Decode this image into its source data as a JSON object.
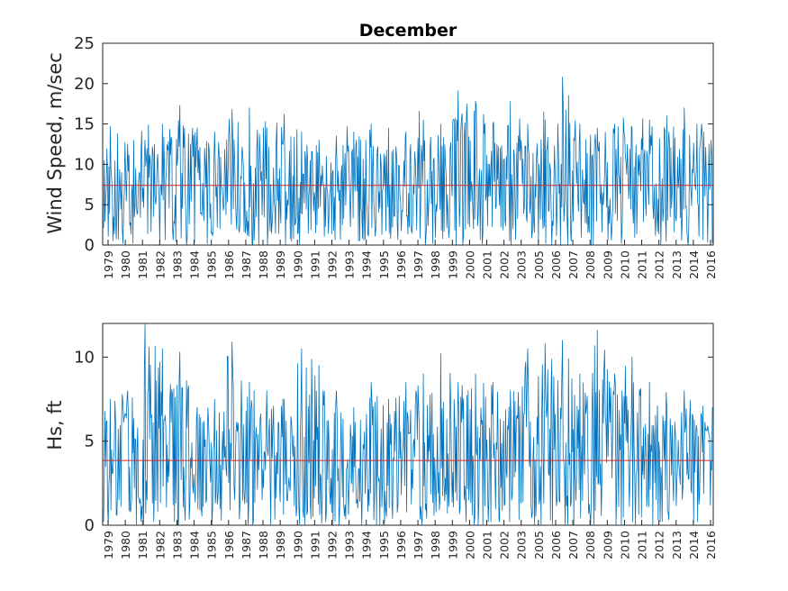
{
  "chart_data": [
    {
      "type": "line",
      "title": "December",
      "ylabel": "Wind Speed, m/sec",
      "xlabel": "",
      "ylim": [
        0,
        25
      ],
      "yticks": [
        "0",
        "5",
        "10",
        "15",
        "20",
        "25"
      ],
      "xtick_labels": [
        "1979",
        "1980",
        "1981",
        "1982",
        "1983",
        "1984",
        "1985",
        "1986",
        "1987",
        "1988",
        "1989",
        "1990",
        "1991",
        "1992",
        "1993",
        "1994",
        "1995",
        "1996",
        "1997",
        "1998",
        "1999",
        "2000",
        "2001",
        "2002",
        "2003",
        "2005",
        "2006",
        "2007",
        "2008",
        "2009",
        "2010",
        "2011",
        "2012",
        "2013",
        "2014",
        "2016"
      ],
      "series_color": "#0072BD",
      "mean_line": {
        "value": 7.4,
        "color": "#D62728"
      },
      "series": [
        {
          "values_by_year_peak": [
            14.7,
            12.5,
            13.0,
            15.0,
            17.3,
            14.5,
            14.0,
            16.8,
            17.0,
            14.5,
            16.2,
            14.0,
            13.0,
            13.5,
            14.0,
            15.0,
            14.5,
            14.0,
            15.5,
            15.0,
            19.1,
            17.8,
            15.0,
            17.8,
            15.0,
            15.5,
            20.8,
            15.0,
            14.5,
            15.0,
            14.5,
            15.5,
            16.0,
            17.0,
            15.0,
            14.5
          ]
        }
      ]
    },
    {
      "type": "line",
      "title": "",
      "ylabel": "Hs, ft",
      "xlabel": "",
      "ylim": [
        0,
        12
      ],
      "yticks": [
        "0",
        "5",
        "10"
      ],
      "xtick_labels": [
        "1979",
        "1980",
        "1981",
        "1982",
        "1983",
        "1984",
        "1985",
        "1986",
        "1987",
        "1988",
        "1989",
        "1990",
        "1991",
        "1992",
        "1993",
        "1994",
        "1995",
        "1996",
        "1997",
        "1998",
        "1999",
        "2000",
        "2001",
        "2002",
        "2003",
        "2005",
        "2006",
        "2007",
        "2008",
        "2009",
        "2010",
        "2011",
        "2012",
        "2013",
        "2014",
        "2016"
      ],
      "series_color": "#0072BD",
      "mean_line": {
        "value": 3.85,
        "color": "#D62728"
      },
      "series": [
        {
          "values_by_year_peak": [
            7.5,
            8.0,
            12.0,
            10.5,
            10.3,
            7.0,
            7.5,
            10.9,
            8.5,
            8.0,
            7.5,
            10.5,
            9.5,
            8.0,
            7.0,
            8.5,
            7.5,
            8.5,
            9.0,
            10.2,
            8.5,
            9.0,
            8.5,
            8.0,
            10.5,
            10.8,
            11.0,
            9.0,
            11.6,
            9.0,
            10.0,
            8.5,
            7.0,
            8.0,
            6.5,
            10.6
          ]
        }
      ]
    }
  ]
}
